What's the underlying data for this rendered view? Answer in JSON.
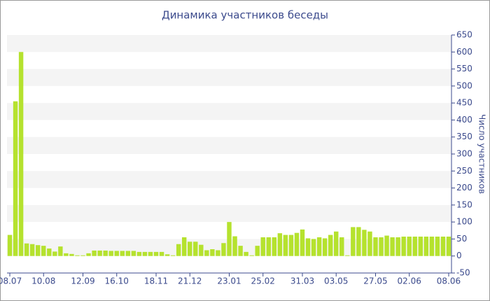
{
  "chart_data": {
    "type": "bar",
    "title": "Динамика участников беседы",
    "y_label": "Число участников",
    "categories": [
      "08.07",
      null,
      null,
      null,
      null,
      null,
      "10.08",
      null,
      null,
      null,
      null,
      null,
      null,
      "12.09",
      null,
      null,
      null,
      null,
      null,
      "16.10",
      null,
      null,
      null,
      null,
      null,
      null,
      "18.11",
      null,
      null,
      null,
      null,
      null,
      "21.12",
      null,
      null,
      null,
      null,
      null,
      null,
      "23.01",
      null,
      null,
      null,
      null,
      null,
      "25.02",
      null,
      null,
      null,
      null,
      null,
      null,
      "31.03",
      null,
      null,
      null,
      null,
      null,
      "03.05",
      null,
      null,
      null,
      null,
      null,
      null,
      "27.05",
      null,
      null,
      null,
      null,
      null,
      "02.06",
      null,
      null,
      null,
      null,
      null,
      null,
      "08.06"
    ],
    "values": [
      62,
      455,
      600,
      37,
      35,
      32,
      30,
      22,
      13,
      28,
      8,
      6,
      2,
      2,
      8,
      16,
      16,
      16,
      15,
      15,
      15,
      15,
      15,
      12,
      12,
      12,
      12,
      12,
      5,
      2,
      35,
      55,
      42,
      42,
      33,
      17,
      20,
      17,
      38,
      100,
      58,
      30,
      12,
      2,
      30,
      55,
      55,
      55,
      67,
      62,
      62,
      68,
      78,
      52,
      50,
      55,
      52,
      62,
      72,
      55,
      2,
      85,
      85,
      77,
      72,
      55,
      55,
      60,
      55,
      55,
      57,
      57,
      57,
      57,
      57,
      57,
      57,
      57,
      57
    ],
    "color": "#b5e22e",
    "ylim": [
      -50,
      650
    ],
    "yticks": [
      -50,
      0,
      50,
      100,
      150,
      200,
      250,
      300,
      350,
      400,
      450,
      500,
      550,
      600,
      650
    ],
    "grid": true
  }
}
